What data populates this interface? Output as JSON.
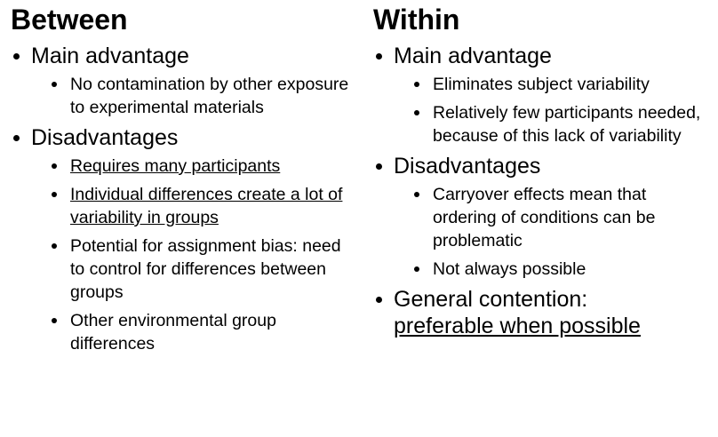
{
  "columns": [
    {
      "title": "Between",
      "items": [
        {
          "text": "Main advantage",
          "subitems": [
            "No contamination by other exposure to experimental materials"
          ]
        },
        {
          "text": "Disadvantages",
          "subitems": [
            "Requires many participants",
            "Individual differences create a lot of variability in groups",
            "Potential for assignment bias: need to control for differences between groups",
            "Other environmental group differences"
          ]
        }
      ]
    },
    {
      "title": "Within",
      "items": [
        {
          "text": "Main advantage",
          "subitems": [
            "Eliminates subject variability",
            "Relatively few participants needed, because of this lack of variability"
          ]
        },
        {
          "text": "Disadvantages",
          "subitems": [
            "Carryover effects mean that ordering of conditions can be problematic",
            "Not always possible"
          ]
        },
        {
          "text": "General contention:",
          "emphasis": "preferable when possible"
        }
      ]
    }
  ]
}
